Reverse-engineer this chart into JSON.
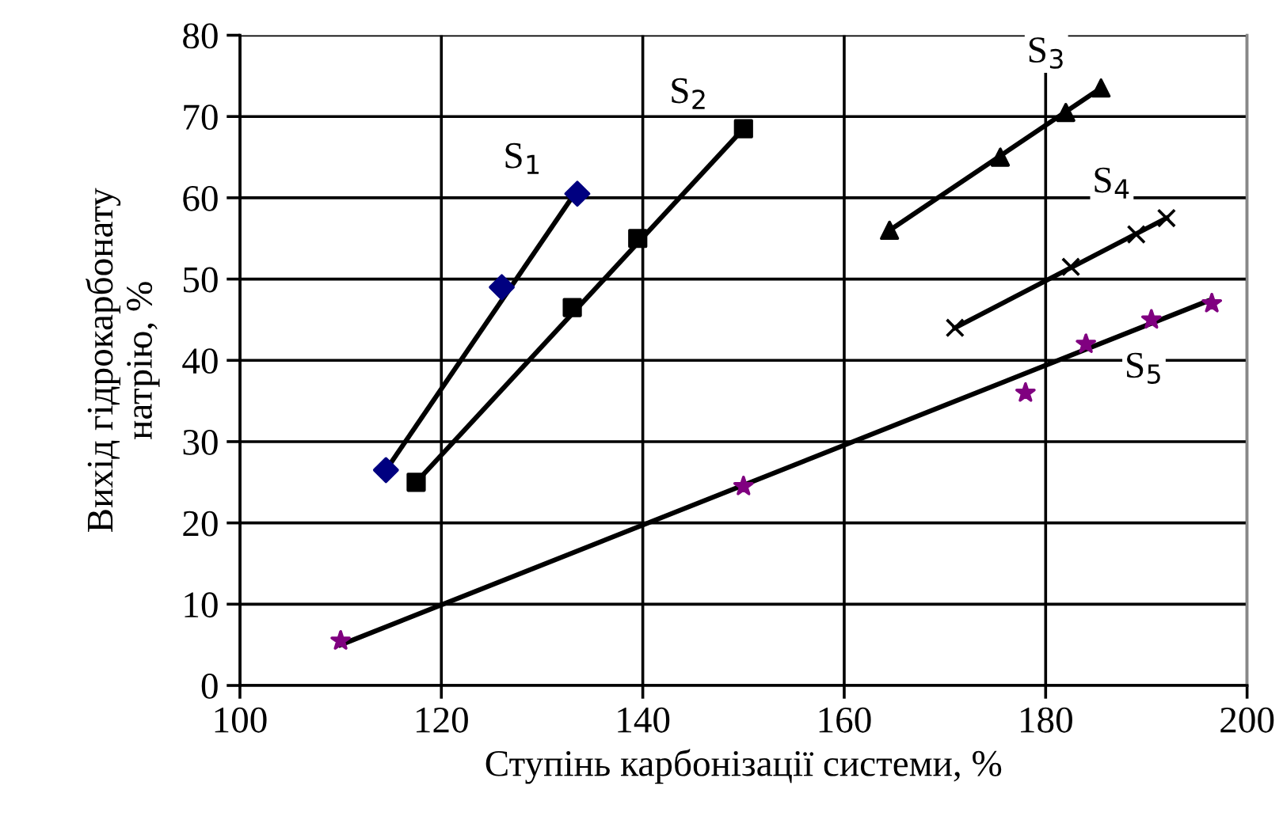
{
  "chart_data": {
    "type": "scatter",
    "xlabel": "Ступінь карбонізації системи, %",
    "ylabel": "Вихід гідрокарбонату\nнатрію, %",
    "xlim": [
      100,
      200
    ],
    "xticks": [
      100,
      120,
      140,
      160,
      180,
      200
    ],
    "ylim": [
      0,
      80
    ],
    "yticks": [
      0,
      10,
      20,
      30,
      40,
      50,
      60,
      70,
      80
    ],
    "grid": true,
    "series": [
      {
        "type": "line",
        "color": "#000000",
        "x": [
          114.5,
          133.5
        ],
        "values": [
          26.5,
          61
        ],
        "marker": "none"
      },
      {
        "type": "line",
        "color": "#000000",
        "x": [
          117.5,
          150
        ],
        "values": [
          25,
          68.5
        ],
        "marker": "none"
      },
      {
        "type": "line",
        "color": "#000000",
        "x": [
          164.5,
          185.5
        ],
        "values": [
          56,
          73.5
        ],
        "marker": "none"
      },
      {
        "type": "line",
        "color": "#000000",
        "x": [
          171,
          192
        ],
        "values": [
          44,
          57.5
        ],
        "marker": "none"
      },
      {
        "type": "line",
        "color": "#000000",
        "x": [
          110,
          196.5
        ],
        "values": [
          5,
          47.5
        ],
        "marker": "none"
      },
      {
        "name": "S$_{1}$",
        "color": "#000080",
        "marker": "diamond",
        "x": [
          114.5,
          126,
          133.5
        ],
        "values": [
          26.5,
          49,
          60.5
        ]
      },
      {
        "name": "S$_{2}$",
        "color": "#000000",
        "marker": "square",
        "x": [
          117.5,
          133,
          139.5,
          150
        ],
        "values": [
          25,
          46.5,
          55,
          68.5
        ]
      },
      {
        "name": "S$_{3}$",
        "color": "#000000",
        "marker": "triangle",
        "x": [
          164.5,
          175.5,
          182,
          185.5
        ],
        "values": [
          56,
          65,
          70.5,
          73.5
        ]
      },
      {
        "name": "S$_{4}$",
        "color": "#000000",
        "marker": "cross",
        "x": [
          171,
          182.5,
          189,
          192
        ],
        "values": [
          44,
          51.5,
          55.5,
          57.5
        ]
      },
      {
        "name": "S$_{5}$",
        "color": "#800080",
        "marker": "star",
        "x": [
          110,
          150,
          178,
          184,
          190.5,
          196.5
        ],
        "values": [
          5.5,
          24.5,
          36,
          42,
          45,
          47
        ]
      }
    ]
  }
}
